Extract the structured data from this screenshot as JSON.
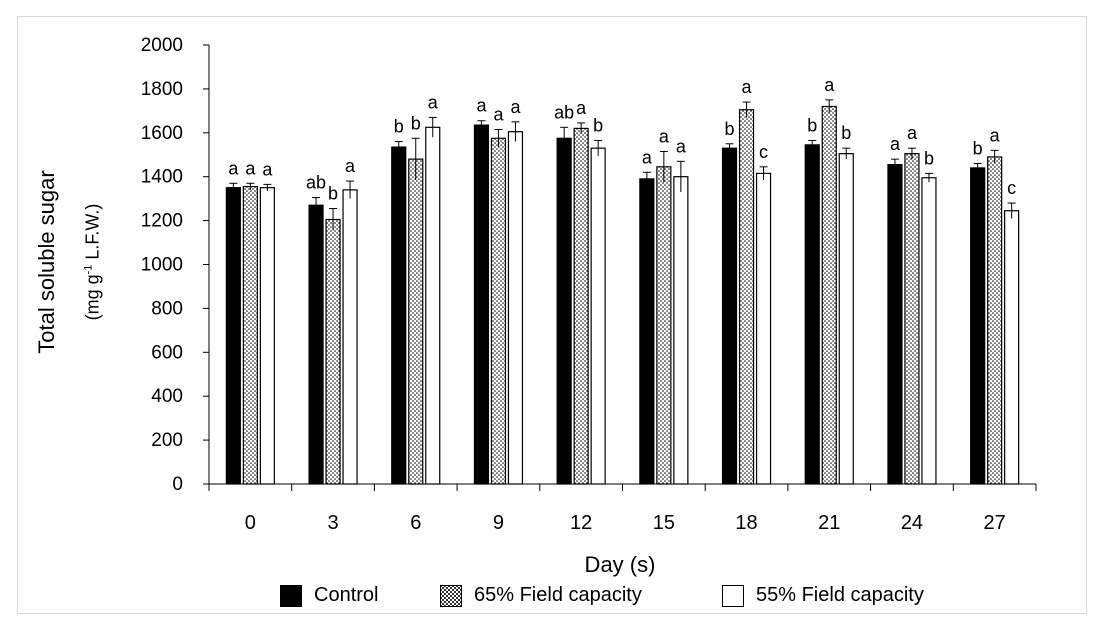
{
  "chart_data": {
    "type": "bar",
    "xlabel": "Day (s)",
    "ylabel": "Total soluble sugar",
    "ylabel_units": {
      "prefix": "(mg g",
      "sup": "-1",
      "suffix": " L.F.W.)"
    },
    "categories": [
      "0",
      "3",
      "6",
      "9",
      "12",
      "15",
      "18",
      "21",
      "24",
      "27"
    ],
    "ylim": [
      0,
      2000
    ],
    "yticks": [
      "0",
      "200",
      "400",
      "600",
      "800",
      "1000",
      "1200",
      "1400",
      "1600",
      "1800",
      "2000"
    ],
    "grid": false,
    "legend_position": "bottom",
    "series": [
      {
        "name": "Control",
        "color": "#000000",
        "pattern": "solid",
        "values": [
          1350,
          1270,
          1535,
          1635,
          1575,
          1390,
          1530,
          1545,
          1455,
          1440
        ],
        "errors": [
          20,
          35,
          25,
          20,
          50,
          30,
          20,
          20,
          25,
          20
        ],
        "letters": [
          "a",
          "ab",
          "b",
          "a",
          "ab",
          "a",
          "b",
          "b",
          "a",
          "b"
        ]
      },
      {
        "name": "65% Field capacity",
        "color": "#000000",
        "pattern": "dotted",
        "values": [
          1355,
          1205,
          1480,
          1575,
          1620,
          1445,
          1705,
          1720,
          1505,
          1490
        ],
        "errors": [
          15,
          50,
          95,
          40,
          25,
          70,
          35,
          30,
          25,
          30
        ],
        "letters": [
          "a",
          "b",
          "b",
          "a",
          "a",
          "a",
          "a",
          "a",
          "a",
          "a"
        ]
      },
      {
        "name": "55% Field capacity",
        "color": "#ffffff",
        "pattern": "none",
        "values": [
          1350,
          1340,
          1625,
          1605,
          1530,
          1400,
          1415,
          1505,
          1395,
          1245
        ],
        "errors": [
          15,
          40,
          45,
          45,
          35,
          70,
          30,
          25,
          20,
          35
        ],
        "letters": [
          "a",
          "a",
          "a",
          "a",
          "b",
          "a",
          "c",
          "b",
          "b",
          "c"
        ]
      }
    ]
  }
}
